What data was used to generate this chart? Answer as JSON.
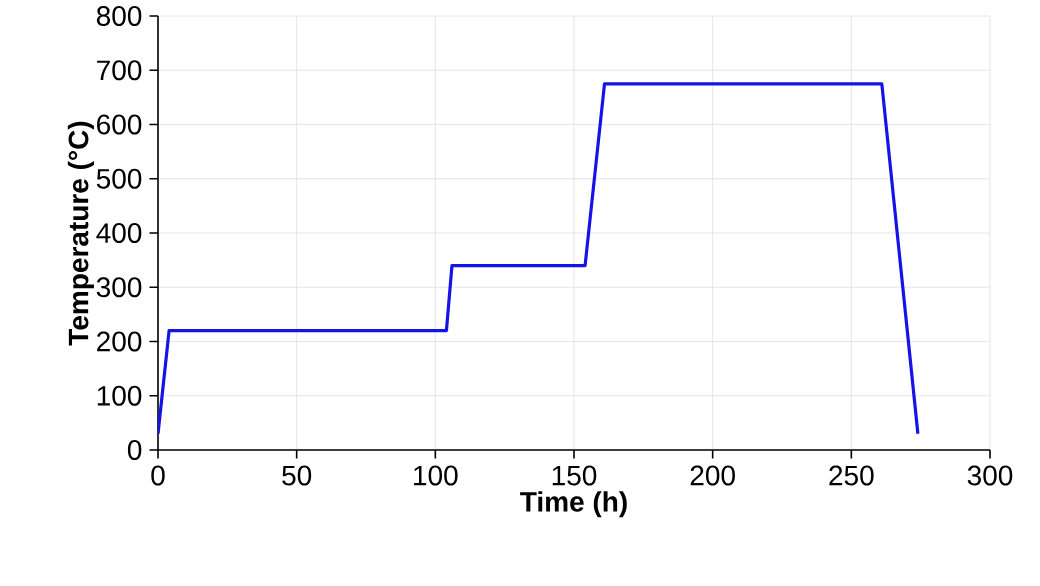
{
  "chart_data": {
    "type": "line",
    "xlabel": "Time (h)",
    "ylabel": "Temperature (°C)",
    "x": [
      0,
      4,
      104,
      106,
      154,
      161,
      261,
      274
    ],
    "series": [
      {
        "color": "#1414e6",
        "values": [
          30,
          220,
          220,
          340,
          340,
          675,
          675,
          30
        ]
      }
    ],
    "xlim": [
      0,
      300
    ],
    "xticks": [
      0,
      50,
      100,
      150,
      200,
      250,
      300
    ],
    "ylim": [
      0,
      800
    ],
    "yticks": [
      0,
      100,
      200,
      300,
      400,
      500,
      600,
      700,
      800
    ],
    "grid": true,
    "marker": "none",
    "line_style": "solid"
  }
}
